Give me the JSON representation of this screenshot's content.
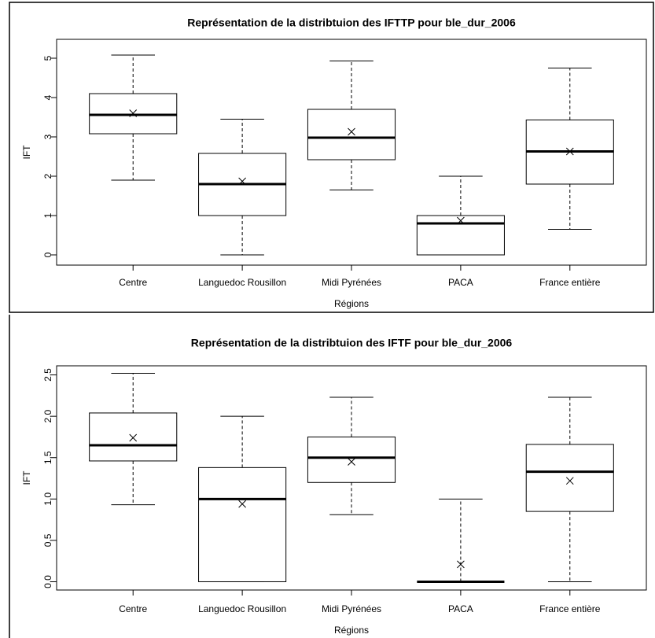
{
  "chart_data": [
    {
      "type": "box",
      "title": "Représentation de la distribtuion des IFTTP pour ble_dur_2006",
      "x_label": "Régions",
      "y_label": "IFT",
      "categories": [
        "Centre",
        "Languedoc Rousillon",
        "Midi Pyrénées",
        "PACA",
        "France entière"
      ],
      "min": [
        1.9,
        0,
        1.65,
        0,
        0.65
      ],
      "q1": [
        3.08,
        1.0,
        2.42,
        0,
        1.8
      ],
      "median": [
        3.56,
        1.8,
        2.98,
        0.8,
        2.63
      ],
      "q3": [
        4.1,
        2.58,
        3.7,
        1.0,
        3.43
      ],
      "max": [
        5.08,
        3.45,
        4.93,
        2.0,
        4.75
      ],
      "mean": [
        3.6,
        1.87,
        3.13,
        0.87,
        2.63
      ],
      "ylim": [
        -0.26,
        5.48
      ],
      "yticks": [
        0,
        1,
        2,
        3,
        4,
        5
      ],
      "color": "#000000"
    },
    {
      "type": "box",
      "title": "Représentation de la distribtuion des IFTF pour ble_dur_2006",
      "x_label": "Régions",
      "y_label": "IFT",
      "categories": [
        "Centre",
        "Languedoc Rousillon",
        "Midi Pyrénées",
        "PACA",
        "France entière"
      ],
      "min": [
        0.93,
        0,
        0.81,
        0,
        0
      ],
      "q1": [
        1.46,
        0,
        1.2,
        0,
        0.85
      ],
      "median": [
        1.65,
        1.0,
        1.5,
        0,
        1.33
      ],
      "q3": [
        2.04,
        1.38,
        1.75,
        0,
        1.66
      ],
      "max": [
        2.52,
        2.0,
        2.23,
        1.0,
        2.23
      ],
      "mean": [
        1.74,
        0.94,
        1.45,
        0.21,
        1.22
      ],
      "ylim": [
        -0.1,
        2.61
      ],
      "yticks": [
        {
          "value": 0,
          "label": "0.0"
        },
        {
          "value": 0.5,
          "label": "0.5"
        },
        {
          "value": 1,
          "label": "1.0"
        },
        {
          "value": 1.5,
          "label": "1.5"
        },
        {
          "value": 2,
          "label": "2.0"
        },
        {
          "value": 2.5,
          "label": "2.5"
        }
      ],
      "color": "#000000"
    }
  ]
}
